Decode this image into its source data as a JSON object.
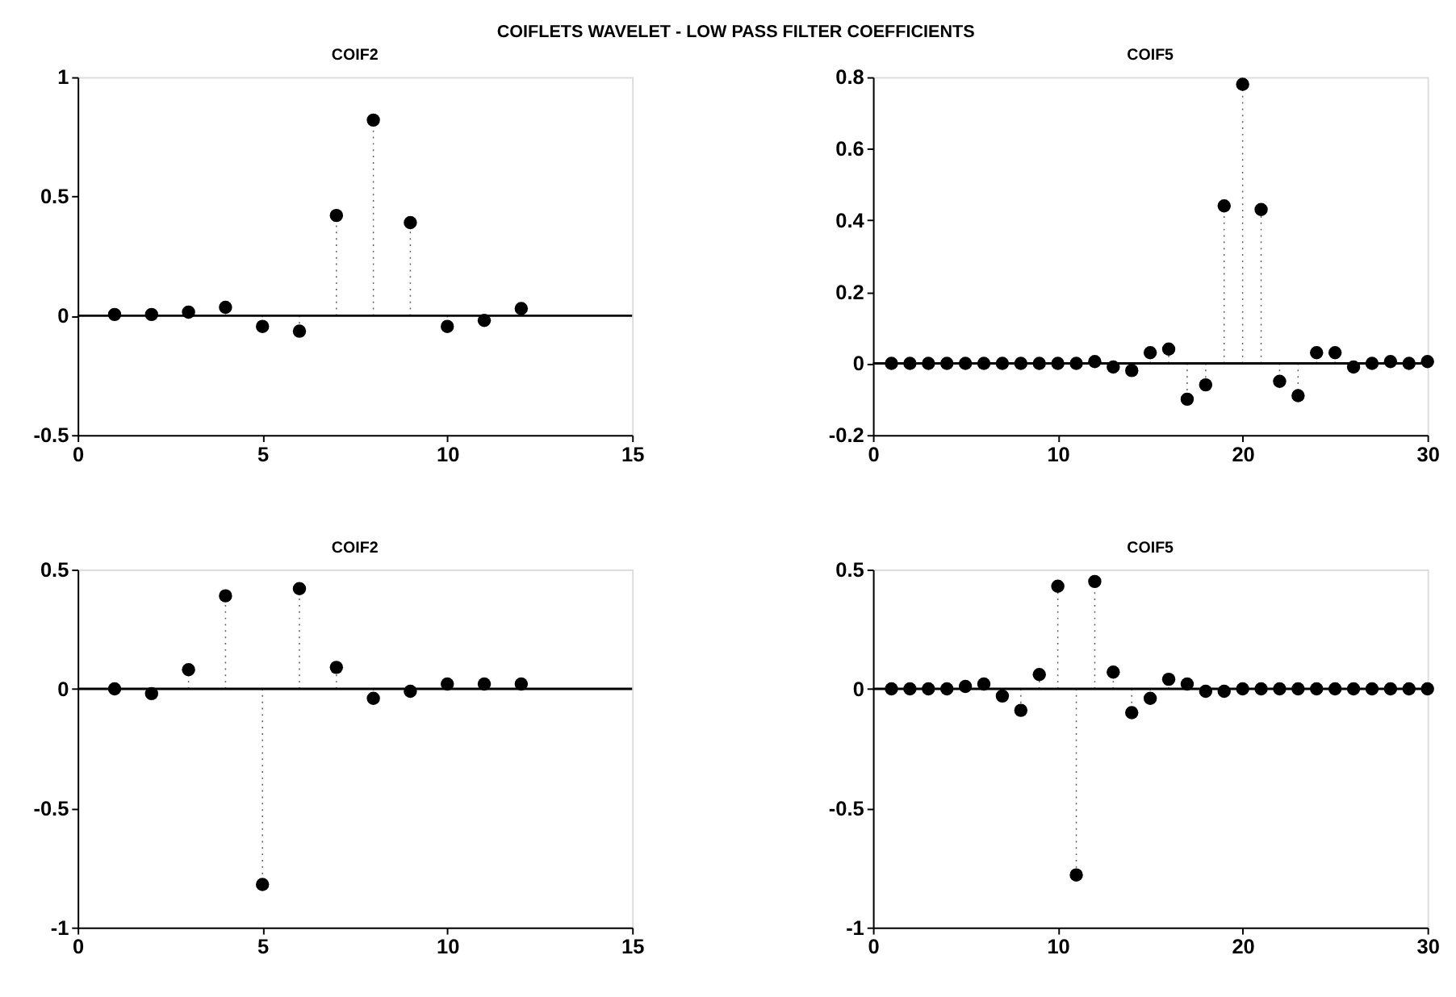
{
  "chart_data": [
    {
      "type": "lollipop",
      "title": "COIF2",
      "annotations": [
        "COIFLETS WAVELET - LOW PASS FILTER COEFFICIENTS"
      ],
      "x": [
        1,
        2,
        3,
        4,
        5,
        6,
        7,
        8,
        9,
        10,
        11,
        12
      ],
      "series": [
        {
          "color": "#000000",
          "values": [
            0.005,
            0.005,
            0.015,
            0.035,
            -0.045,
            -0.065,
            0.42,
            0.82,
            0.39,
            -0.045,
            -0.02,
            0.03
          ]
        }
      ],
      "xlim": [
        0,
        15
      ],
      "xticks": [
        0,
        5,
        10,
        15
      ],
      "ylim": [
        -0.5,
        1
      ],
      "yticks": [
        -0.5,
        0,
        0.5,
        1
      ],
      "ref_lines": [
        {
          "axis": "y",
          "value": 0,
          "color": "#000000"
        }
      ],
      "marker": "circle",
      "line_style": "dotted"
    },
    {
      "type": "lollipop",
      "title": "COIF5",
      "x": [
        1,
        2,
        3,
        4,
        5,
        6,
        7,
        8,
        9,
        10,
        11,
        12,
        13,
        14,
        15,
        16,
        17,
        18,
        19,
        20,
        21,
        22,
        23,
        24,
        25,
        26,
        27,
        28,
        29,
        30
      ],
      "series": [
        {
          "color": "#000000",
          "values": [
            0,
            0,
            0,
            0,
            0,
            0,
            0,
            0,
            0,
            0,
            0,
            0.005,
            -0.01,
            -0.02,
            0.03,
            0.04,
            -0.1,
            -0.06,
            0.44,
            0.78,
            0.43,
            -0.05,
            -0.09,
            0.03,
            0.03,
            -0.01,
            0,
            0.005,
            0,
            0.005
          ]
        }
      ],
      "xlim": [
        0,
        30
      ],
      "xticks": [
        0,
        10,
        20,
        30
      ],
      "ylim": [
        -0.2,
        0.8
      ],
      "yticks": [
        -0.2,
        0,
        0.2,
        0.4,
        0.6,
        0.8
      ],
      "ref_lines": [
        {
          "axis": "y",
          "value": 0,
          "color": "#000000"
        }
      ],
      "marker": "circle",
      "line_style": "dotted"
    },
    {
      "type": "lollipop",
      "title": "COIF2",
      "x": [
        1,
        2,
        3,
        4,
        5,
        6,
        7,
        8,
        9,
        10,
        11,
        12
      ],
      "series": [
        {
          "color": "#000000",
          "values": [
            0,
            -0.02,
            0.08,
            0.39,
            -0.82,
            0.42,
            0.09,
            -0.04,
            -0.01,
            0.02,
            0.02,
            0.02
          ]
        }
      ],
      "xlim": [
        0,
        15
      ],
      "xticks": [
        0,
        5,
        10,
        15
      ],
      "ylim": [
        -1,
        0.5
      ],
      "yticks": [
        -1,
        -0.5,
        0,
        0.5
      ],
      "ref_lines": [
        {
          "axis": "y",
          "value": 0,
          "color": "#000000"
        }
      ],
      "marker": "circle",
      "line_style": "dotted"
    },
    {
      "type": "lollipop",
      "title": "COIF5",
      "x": [
        1,
        2,
        3,
        4,
        5,
        6,
        7,
        8,
        9,
        10,
        11,
        12,
        13,
        14,
        15,
        16,
        17,
        18,
        19,
        20,
        21,
        22,
        23,
        24,
        25,
        26,
        27,
        28,
        29,
        30
      ],
      "series": [
        {
          "color": "#000000",
          "values": [
            0,
            0,
            0,
            0,
            0.01,
            0.02,
            -0.03,
            -0.09,
            0.06,
            0.43,
            -0.78,
            0.45,
            0.07,
            -0.1,
            -0.04,
            0.04,
            0.02,
            -0.01,
            -0.01,
            0,
            0,
            0,
            0,
            0,
            0,
            0,
            0,
            0,
            0,
            0
          ]
        }
      ],
      "xlim": [
        0,
        30
      ],
      "xticks": [
        0,
        10,
        20,
        30
      ],
      "ylim": [
        -1,
        0.5
      ],
      "yticks": [
        -1,
        -0.5,
        0,
        0.5
      ],
      "ref_lines": [
        {
          "axis": "y",
          "value": 0,
          "color": "#000000"
        }
      ],
      "marker": "circle",
      "line_style": "dotted"
    }
  ]
}
